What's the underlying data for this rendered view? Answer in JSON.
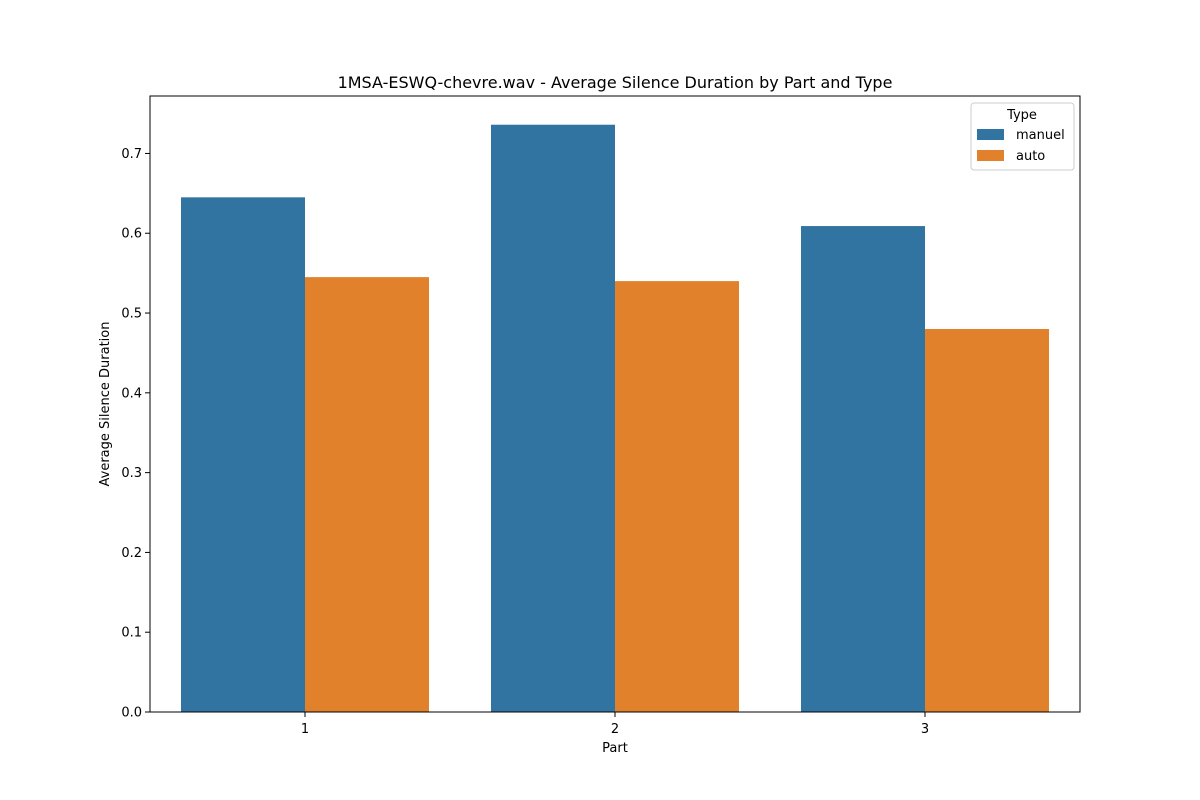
{
  "chart_data": {
    "type": "bar",
    "title": "1MSA-ESWQ-chevre.wav - Average Silence Duration by Part and Type",
    "xlabel": "Part",
    "ylabel": "Average Silence Duration",
    "categories": [
      "1",
      "2",
      "3"
    ],
    "series": [
      {
        "name": "manuel",
        "color": "#3274a1",
        "values": [
          0.645,
          0.736,
          0.609
        ]
      },
      {
        "name": "auto",
        "color": "#e1812c",
        "values": [
          0.545,
          0.54,
          0.48
        ]
      }
    ],
    "ylim": [
      0,
      0.772
    ],
    "yticks": [
      0.0,
      0.1,
      0.2,
      0.3,
      0.4,
      0.5,
      0.6,
      0.7
    ],
    "ytick_labels": [
      "0.0",
      "0.1",
      "0.2",
      "0.3",
      "0.4",
      "0.5",
      "0.6",
      "0.7"
    ],
    "grid": false,
    "legend": {
      "title": "Type",
      "position": "top-right"
    }
  }
}
